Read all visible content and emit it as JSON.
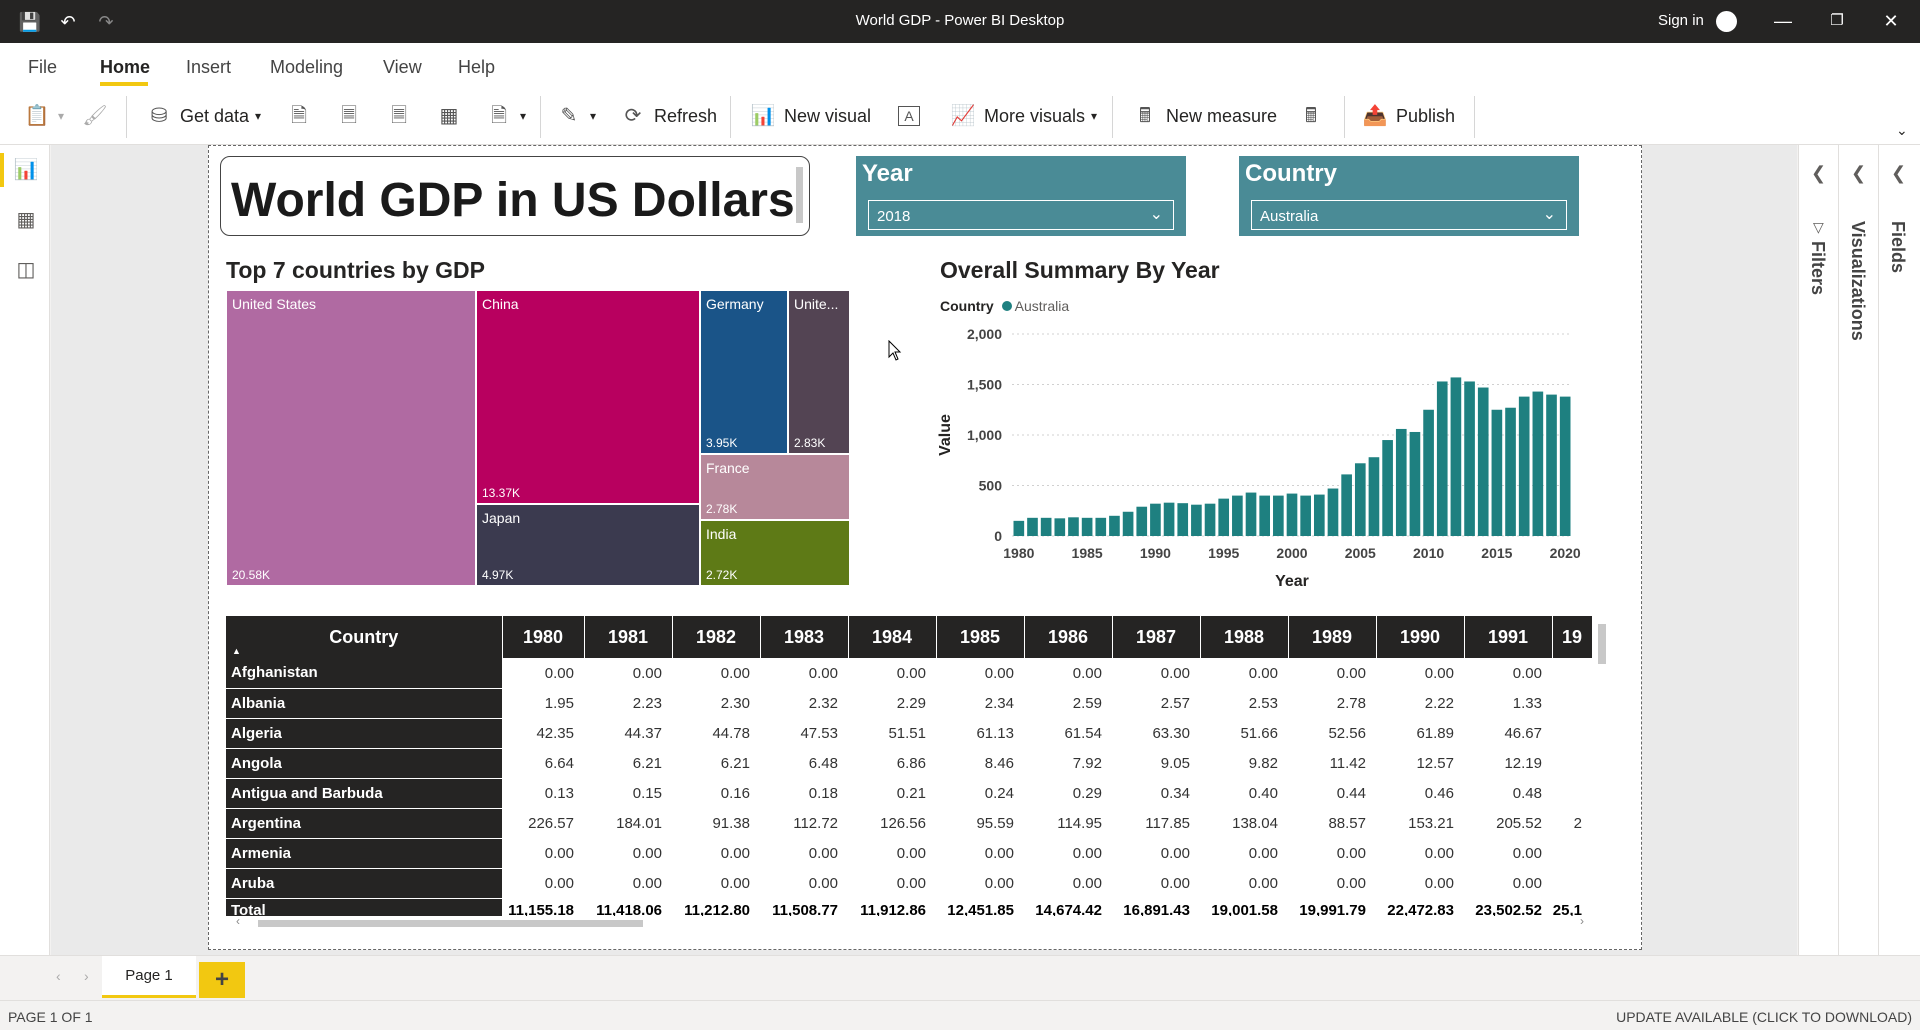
{
  "window": {
    "title": "World GDP - Power BI Desktop",
    "sign_in": "Sign in"
  },
  "menu": {
    "items": [
      "File",
      "Home",
      "Insert",
      "Modeling",
      "View",
      "Help"
    ],
    "active": "Home"
  },
  "ribbon": {
    "get_data": "Get data",
    "refresh": "Refresh",
    "new_visual": "New visual",
    "more_visuals": "More visuals",
    "new_measure": "New measure",
    "publish": "Publish"
  },
  "report": {
    "title": "World GDP in US Dollars"
  },
  "slicers": {
    "year": {
      "label": "Year",
      "value": "2018"
    },
    "country": {
      "label": "Country",
      "value": "Australia"
    }
  },
  "treemap": {
    "title": "Top 7 countries by GDP",
    "tiles": [
      {
        "name": "United States",
        "value": "20.58K",
        "color": "#b06aa2"
      },
      {
        "name": "China",
        "value": "13.37K",
        "color": "#b8005f"
      },
      {
        "name": "Germany",
        "value": "3.95K",
        "color": "#1a5488"
      },
      {
        "name": "Unite...",
        "value": "2.83K",
        "color": "#534453"
      },
      {
        "name": "France",
        "value": "2.78K",
        "color": "#b7889a"
      },
      {
        "name": "Japan",
        "value": "4.97K",
        "color": "#3b3a4f"
      },
      {
        "name": "India",
        "value": "2.72K",
        "color": "#5e7a16"
      }
    ]
  },
  "chart_data": {
    "type": "bar",
    "title": "Overall Summary By Year",
    "legend": {
      "title": "Country",
      "entries": [
        "Australia"
      ],
      "position": "top-left"
    },
    "xlabel": "Year",
    "ylabel": "Value",
    "ylim": [
      0,
      2000
    ],
    "yticks": [
      0,
      500,
      1000,
      1500,
      2000
    ],
    "ytick_labels": [
      "0",
      "500",
      "1,000",
      "1,500",
      "2,000"
    ],
    "xticks": [
      1980,
      1985,
      1990,
      1995,
      2000,
      2005,
      2010,
      2015,
      2020
    ],
    "color": "#1e8080",
    "grid": true,
    "x": [
      1980,
      1981,
      1982,
      1983,
      1984,
      1985,
      1986,
      1987,
      1988,
      1989,
      1990,
      1991,
      1992,
      1993,
      1994,
      1995,
      1996,
      1997,
      1998,
      1999,
      2000,
      2001,
      2002,
      2003,
      2004,
      2005,
      2006,
      2007,
      2008,
      2009,
      2010,
      2011,
      2012,
      2013,
      2014,
      2015,
      2016,
      2017,
      2018,
      2019,
      2020
    ],
    "values": [
      150,
      180,
      180,
      175,
      185,
      180,
      180,
      200,
      240,
      290,
      320,
      330,
      325,
      310,
      320,
      370,
      400,
      430,
      400,
      400,
      420,
      400,
      410,
      470,
      610,
      720,
      780,
      950,
      1060,
      1030,
      1250,
      1530,
      1570,
      1530,
      1470,
      1250,
      1270,
      1380,
      1430,
      1400,
      1380
    ]
  },
  "matrix": {
    "header": {
      "country": "Country",
      "years": [
        "1980",
        "1981",
        "1982",
        "1983",
        "1984",
        "1985",
        "1986",
        "1987",
        "1988",
        "1989",
        "1990",
        "1991",
        "19"
      ]
    },
    "rows": [
      {
        "country": "Afghanistan",
        "values": [
          "0.00",
          "0.00",
          "0.00",
          "0.00",
          "0.00",
          "0.00",
          "0.00",
          "0.00",
          "0.00",
          "0.00",
          "0.00",
          "0.00",
          ""
        ]
      },
      {
        "country": "Albania",
        "values": [
          "1.95",
          "2.23",
          "2.30",
          "2.32",
          "2.29",
          "2.34",
          "2.59",
          "2.57",
          "2.53",
          "2.78",
          "2.22",
          "1.33",
          ""
        ]
      },
      {
        "country": "Algeria",
        "values": [
          "42.35",
          "44.37",
          "44.78",
          "47.53",
          "51.51",
          "61.13",
          "61.54",
          "63.30",
          "51.66",
          "52.56",
          "61.89",
          "46.67",
          ""
        ]
      },
      {
        "country": "Angola",
        "values": [
          "6.64",
          "6.21",
          "6.21",
          "6.48",
          "6.86",
          "8.46",
          "7.92",
          "9.05",
          "9.82",
          "11.42",
          "12.57",
          "12.19",
          ""
        ]
      },
      {
        "country": "Antigua and Barbuda",
        "values": [
          "0.13",
          "0.15",
          "0.16",
          "0.18",
          "0.21",
          "0.24",
          "0.29",
          "0.34",
          "0.40",
          "0.44",
          "0.46",
          "0.48",
          ""
        ]
      },
      {
        "country": "Argentina",
        "values": [
          "226.57",
          "184.01",
          "91.38",
          "112.72",
          "126.56",
          "95.59",
          "114.95",
          "117.85",
          "138.04",
          "88.57",
          "153.21",
          "205.52",
          "2"
        ]
      },
      {
        "country": "Armenia",
        "values": [
          "0.00",
          "0.00",
          "0.00",
          "0.00",
          "0.00",
          "0.00",
          "0.00",
          "0.00",
          "0.00",
          "0.00",
          "0.00",
          "0.00",
          ""
        ]
      },
      {
        "country": "Aruba",
        "values": [
          "0.00",
          "0.00",
          "0.00",
          "0.00",
          "0.00",
          "0.00",
          "0.00",
          "0.00",
          "0.00",
          "0.00",
          "0.00",
          "0.00",
          ""
        ]
      }
    ],
    "total": {
      "country": "Total",
      "values": [
        "11,155.18",
        "11,418.06",
        "11,212.80",
        "11,508.77",
        "11,912.86",
        "12,451.85",
        "14,674.42",
        "16,891.43",
        "19,001.58",
        "19,991.79",
        "22,472.83",
        "23,502.52",
        "25,1"
      ]
    }
  },
  "pages": {
    "tab": "Page 1",
    "add": "+"
  },
  "status": {
    "left": "PAGE 1 OF 1",
    "right": "UPDATE AVAILABLE (CLICK TO DOWNLOAD)"
  },
  "panes": {
    "filters": "Filters",
    "visualizations": "Visualizations",
    "fields": "Fields"
  }
}
